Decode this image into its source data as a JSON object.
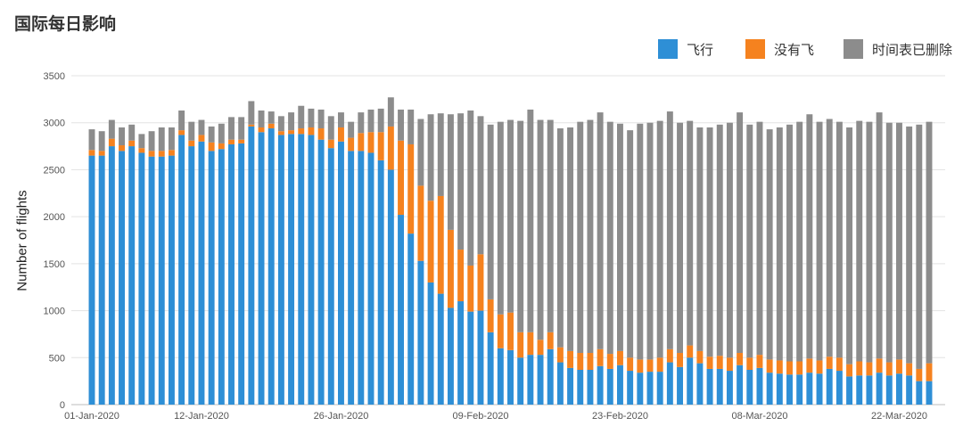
{
  "title": "国际每日影响",
  "chart_data": {
    "type": "bar",
    "stacked": true,
    "title": "国际每日影响",
    "ylabel": "Number of flights",
    "xlabel": "",
    "ylim": [
      0,
      3500
    ],
    "yticks": [
      0,
      500,
      1000,
      1500,
      2000,
      2500,
      3000,
      3500
    ],
    "grid": true,
    "legend_position": "top-right",
    "x_tick_labels": [
      "01-Jan-2020",
      "12-Jan-2020",
      "26-Jan-2020",
      "09-Feb-2020",
      "23-Feb-2020",
      "08-Mar-2020",
      "22-Mar-2020"
    ],
    "x_tick_indices": [
      0,
      11,
      25,
      39,
      53,
      67,
      81
    ],
    "series": [
      {
        "name": "飞行",
        "color": "#2e8fd6",
        "values": [
          2650,
          2650,
          2750,
          2700,
          2750,
          2680,
          2640,
          2640,
          2650,
          2870,
          2750,
          2800,
          2700,
          2720,
          2770,
          2780,
          2960,
          2900,
          2940,
          2870,
          2880,
          2880,
          2870,
          2820,
          2730,
          2800,
          2700,
          2700,
          2680,
          2600,
          2500,
          2020,
          1820,
          1530,
          1300,
          1180,
          1030,
          1100,
          990,
          1000,
          770,
          600,
          580,
          500,
          530,
          530,
          590,
          450,
          390,
          370,
          370,
          410,
          380,
          420,
          360,
          340,
          350,
          350,
          450,
          400,
          500,
          440,
          380,
          380,
          360,
          420,
          370,
          390,
          340,
          330,
          320,
          320,
          340,
          330,
          380,
          360,
          300,
          310,
          310,
          340,
          310,
          330,
          310,
          250,
          250
        ]
      },
      {
        "name": "没有飞",
        "color": "#f5821f",
        "values": [
          60,
          50,
          80,
          60,
          60,
          50,
          60,
          60,
          60,
          50,
          60,
          70,
          90,
          60,
          50,
          40,
          20,
          50,
          50,
          40,
          40,
          60,
          80,
          120,
          90,
          150,
          140,
          190,
          220,
          300,
          460,
          790,
          950,
          800,
          870,
          1040,
          830,
          550,
          490,
          600,
          350,
          360,
          400,
          270,
          240,
          160,
          180,
          160,
          180,
          180,
          180,
          180,
          160,
          150,
          140,
          140,
          130,
          150,
          140,
          150,
          130,
          130,
          130,
          140,
          140,
          130,
          130,
          140,
          140,
          140,
          140,
          140,
          150,
          140,
          130,
          140,
          130,
          150,
          140,
          150,
          140,
          150,
          130,
          130,
          190
        ]
      },
      {
        "name": "时间表已删除",
        "color": "#8c8c8c",
        "values": [
          220,
          210,
          200,
          190,
          170,
          150,
          210,
          250,
          240,
          210,
          200,
          160,
          170,
          210,
          240,
          240,
          250,
          180,
          130,
          160,
          190,
          240,
          200,
          200,
          250,
          160,
          170,
          220,
          240,
          250,
          310,
          330,
          370,
          710,
          920,
          880,
          1230,
          1450,
          1650,
          1470,
          1860,
          2050,
          2050,
          2250,
          2370,
          2340,
          2260,
          2330,
          2380,
          2460,
          2480,
          2520,
          2470,
          2420,
          2420,
          2510,
          2520,
          2520,
          2530,
          2450,
          2390,
          2380,
          2440,
          2460,
          2500,
          2560,
          2480,
          2480,
          2450,
          2480,
          2520,
          2550,
          2600,
          2540,
          2530,
          2510,
          2520,
          2560,
          2560,
          2620,
          2550,
          2520,
          2520,
          2600,
          2570
        ]
      }
    ]
  }
}
